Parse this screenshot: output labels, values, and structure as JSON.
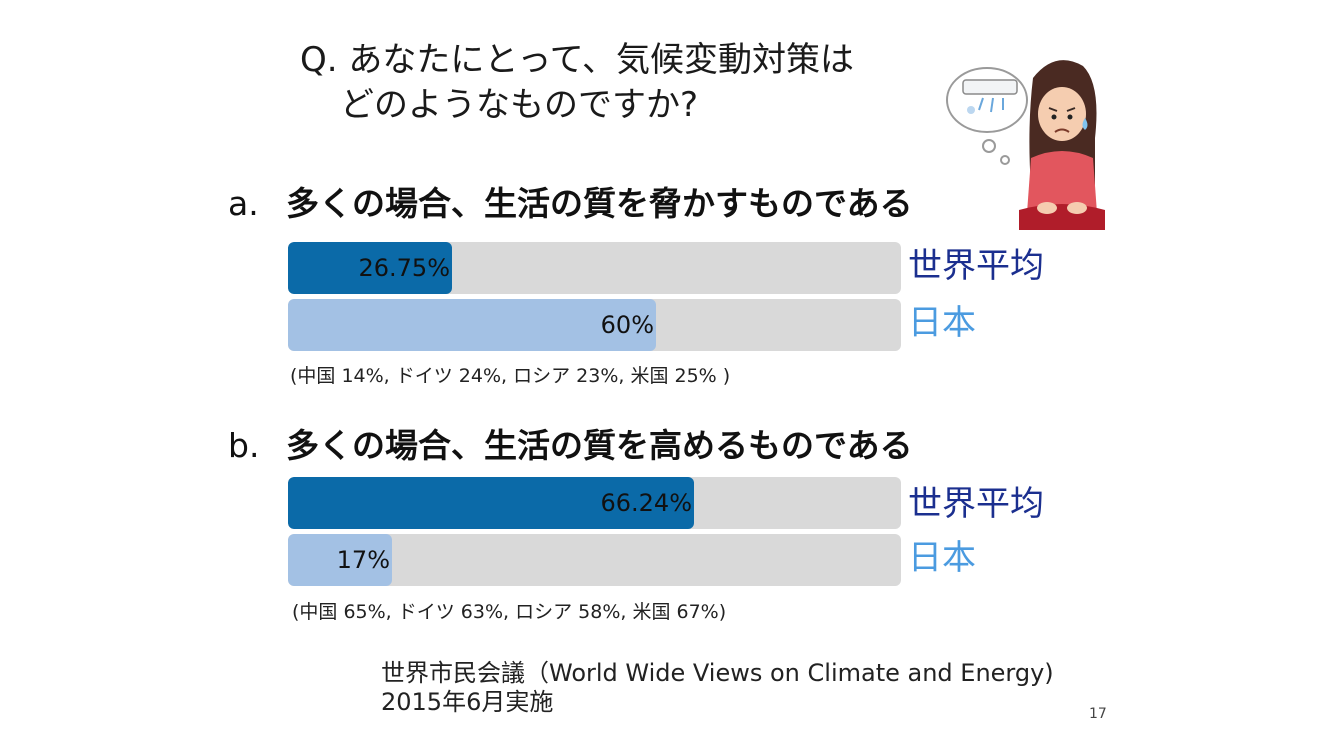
{
  "question": {
    "line1": "Q. あなたにとって、気候変動対策は",
    "line2": "どのようなものですか?"
  },
  "chart_data": [
    {
      "type": "bar",
      "orientation": "horizontal",
      "title": "多くの場合、生活の質を脅かすものである",
      "label": "a.",
      "xlim": [
        0,
        100
      ],
      "unit": "%",
      "categories": [
        "世界平均",
        "日本"
      ],
      "values": [
        26.75,
        60
      ],
      "value_labels": [
        "26.75%",
        "60%"
      ],
      "colors": [
        "#0b6aa8",
        "#a3c1e4"
      ],
      "note": "(中国 14%, ドイツ 24%, ロシア 23%, 米国 25% )"
    },
    {
      "type": "bar",
      "orientation": "horizontal",
      "title": "多くの場合、生活の質を高めるものである",
      "label": "b.",
      "xlim": [
        0,
        100
      ],
      "unit": "%",
      "categories": [
        "世界平均",
        "日本"
      ],
      "values": [
        66.24,
        17
      ],
      "value_labels": [
        "66.24%",
        "17%"
      ],
      "colors": [
        "#0b6aa8",
        "#a3c1e4"
      ],
      "note": "(中国 65%, ドイツ 63%, ロシア 58%, 米国 67%)"
    }
  ],
  "source": {
    "line1": "世界市民会議（World Wide Views on Climate and Energy)",
    "line2": "2015年6月実施"
  },
  "page_number": "17",
  "illustration": {
    "icon": "person-with-air-conditioner-icon"
  }
}
